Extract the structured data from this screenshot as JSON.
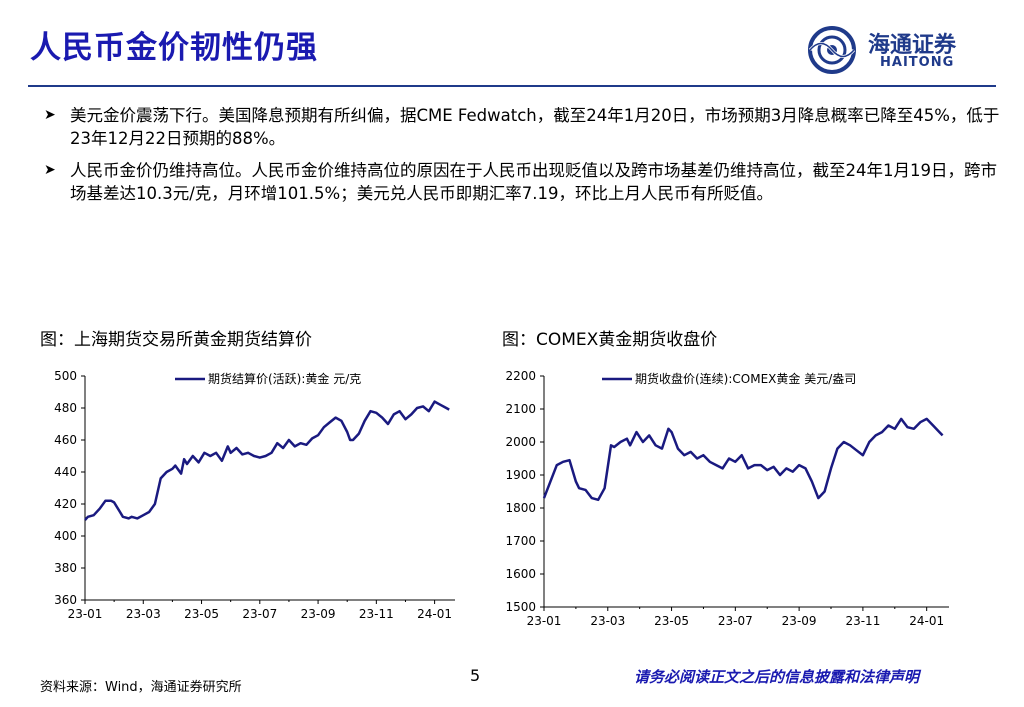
{
  "title": "人民币金价韧性仍强",
  "logo": {
    "cn": "海通证券",
    "en": "HAITONG",
    "icon": "haitong-logo-icon"
  },
  "bullets": [
    {
      "text": "美元金价震荡下行。美国降息预期有所纠偏，据CME Fedwatch，截至24年1月20日，市场预期3月降息概率已降至45%，低于23年12月22日预期的88%。"
    },
    {
      "text": "人民币金价仍维持高位。人民币金价维持高位的原因在于人民币出现贬值以及跨市场基差仍维持高位，截至24年1月19日，跨市场基差达10.3元/克，月环增101.5%；美元兑人民币即期汇率7.19，环比上月人民币有所贬值。"
    }
  ],
  "captions": {
    "left": "图：上海期货交易所黄金期货结算价",
    "right": "图：COMEX黄金期货收盘价"
  },
  "footer": {
    "source": "资料来源：Wind，海通证券研究所",
    "page": "5",
    "legal": "请务必阅读正文之后的信息披露和法律声明"
  },
  "chart_data": [
    {
      "type": "line",
      "legend": "期货结算价(活跃):黄金 元/克",
      "legend_position": "top",
      "ylim": [
        360,
        500
      ],
      "yticks": [
        360,
        380,
        400,
        420,
        440,
        460,
        480,
        500
      ],
      "xticks": [
        "23-01",
        "23-03",
        "23-05",
        "23-07",
        "23-09",
        "23-11",
        "24-01"
      ],
      "x_range": [
        0,
        12.7
      ],
      "color": "#1a1a80",
      "series": [
        {
          "x": [
            0.0,
            0.1,
            0.3,
            0.5,
            0.7,
            0.9,
            1.0,
            1.2,
            1.3,
            1.5,
            1.6,
            1.8,
            2.0,
            2.2,
            2.4,
            2.6,
            2.8,
            3.0,
            3.1,
            3.3,
            3.4,
            3.5,
            3.7,
            3.9,
            4.1,
            4.3,
            4.5,
            4.7,
            4.9,
            5.0,
            5.2,
            5.4,
            5.6,
            5.8,
            6.0,
            6.2,
            6.4,
            6.6,
            6.8,
            7.0,
            7.2,
            7.4,
            7.6,
            7.8,
            8.0,
            8.2,
            8.4,
            8.6,
            8.8,
            9.0,
            9.1,
            9.2,
            9.4,
            9.6,
            9.8,
            10.0,
            10.2,
            10.4,
            10.6,
            10.8,
            11.0,
            11.2,
            11.4,
            11.6,
            11.8,
            12.0,
            12.2,
            12.4,
            12.5
          ],
          "y": [
            410,
            412,
            413,
            417,
            422,
            422,
            421,
            415,
            412,
            411,
            412,
            411,
            413,
            415,
            420,
            436,
            440,
            442,
            444,
            439,
            448,
            445,
            450,
            446,
            452,
            450,
            452,
            447,
            456,
            452,
            455,
            451,
            452,
            450,
            449,
            450,
            452,
            458,
            455,
            460,
            456,
            458,
            457,
            461,
            463,
            468,
            471,
            474,
            472,
            465,
            460,
            460,
            464,
            472,
            478,
            477,
            474,
            470,
            476,
            478,
            473,
            476,
            480,
            481,
            478,
            484,
            482,
            480,
            479
          ]
        }
      ]
    },
    {
      "type": "line",
      "legend": "期货收盘价(连续):COMEX黄金 美元/盎司",
      "legend_position": "top",
      "ylim": [
        1500,
        2200
      ],
      "yticks": [
        1500,
        1600,
        1700,
        1800,
        1900,
        2000,
        2100,
        2200
      ],
      "xticks": [
        "23-01",
        "23-03",
        "23-05",
        "23-07",
        "23-09",
        "23-11",
        "24-01"
      ],
      "x_range": [
        0,
        12.7
      ],
      "color": "#1a1a80",
      "series": [
        {
          "x": [
            0.0,
            0.2,
            0.4,
            0.6,
            0.8,
            1.0,
            1.1,
            1.3,
            1.5,
            1.7,
            1.9,
            2.1,
            2.2,
            2.4,
            2.6,
            2.7,
            2.9,
            3.1,
            3.3,
            3.5,
            3.7,
            3.9,
            4.0,
            4.2,
            4.4,
            4.6,
            4.8,
            5.0,
            5.2,
            5.4,
            5.6,
            5.8,
            6.0,
            6.2,
            6.4,
            6.6,
            6.8,
            7.0,
            7.2,
            7.4,
            7.6,
            7.8,
            8.0,
            8.2,
            8.4,
            8.6,
            8.8,
            9.0,
            9.2,
            9.4,
            9.6,
            9.8,
            10.0,
            10.2,
            10.4,
            10.6,
            10.8,
            11.0,
            11.2,
            11.4,
            11.6,
            11.8,
            12.0,
            12.2,
            12.4,
            12.5
          ],
          "y": [
            1830,
            1880,
            1930,
            1940,
            1945,
            1880,
            1860,
            1855,
            1830,
            1825,
            1860,
            1990,
            1985,
            2000,
            2010,
            1990,
            2030,
            2000,
            2020,
            1990,
            1980,
            2040,
            2030,
            1980,
            1960,
            1970,
            1950,
            1960,
            1940,
            1930,
            1920,
            1950,
            1940,
            1960,
            1920,
            1930,
            1930,
            1915,
            1925,
            1900,
            1920,
            1910,
            1930,
            1920,
            1880,
            1830,
            1850,
            1920,
            1980,
            2000,
            1990,
            1975,
            1960,
            2000,
            2020,
            2030,
            2050,
            2040,
            2070,
            2045,
            2040,
            2060,
            2070,
            2050,
            2030,
            2020
          ]
        }
      ]
    }
  ]
}
